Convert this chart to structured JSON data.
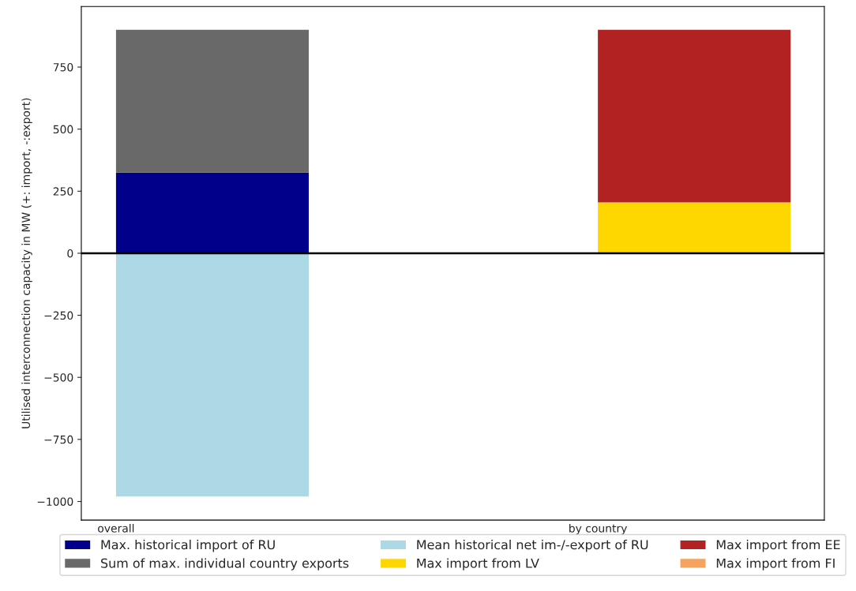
{
  "chart_data": {
    "type": "bar",
    "stacked": true,
    "ylabel": "Utilised interconnection capacity in MW (+: import, -:export)",
    "categories": [
      "overall",
      "by country"
    ],
    "series": [
      {
        "name": "Max. historical import of RU",
        "color": "#00008b",
        "values": [
          325,
          null
        ]
      },
      {
        "name": "Sum of max. individual country exports",
        "color": "#696969",
        "values": [
          575,
          null
        ]
      },
      {
        "name": "Mean historical net im-/-export of RU",
        "color": "#add8e6",
        "values": [
          -980,
          null
        ]
      },
      {
        "name": "Max import from LV",
        "color": "#ffd700",
        "values": [
          null,
          205
        ]
      },
      {
        "name": "Max import from EE",
        "color": "#b22222",
        "values": [
          null,
          695
        ]
      },
      {
        "name": "Max import from FI",
        "color": "#f4a460",
        "values": [
          null,
          0
        ]
      }
    ],
    "ylim": [
      -1075,
      994
    ],
    "yticks": [
      -1000,
      -750,
      -500,
      -250,
      0,
      250,
      500,
      750
    ],
    "ref_lines": [
      {
        "axis": "y",
        "value": 0,
        "color": "#000000"
      }
    ],
    "legend": "bottom",
    "grid": false
  }
}
